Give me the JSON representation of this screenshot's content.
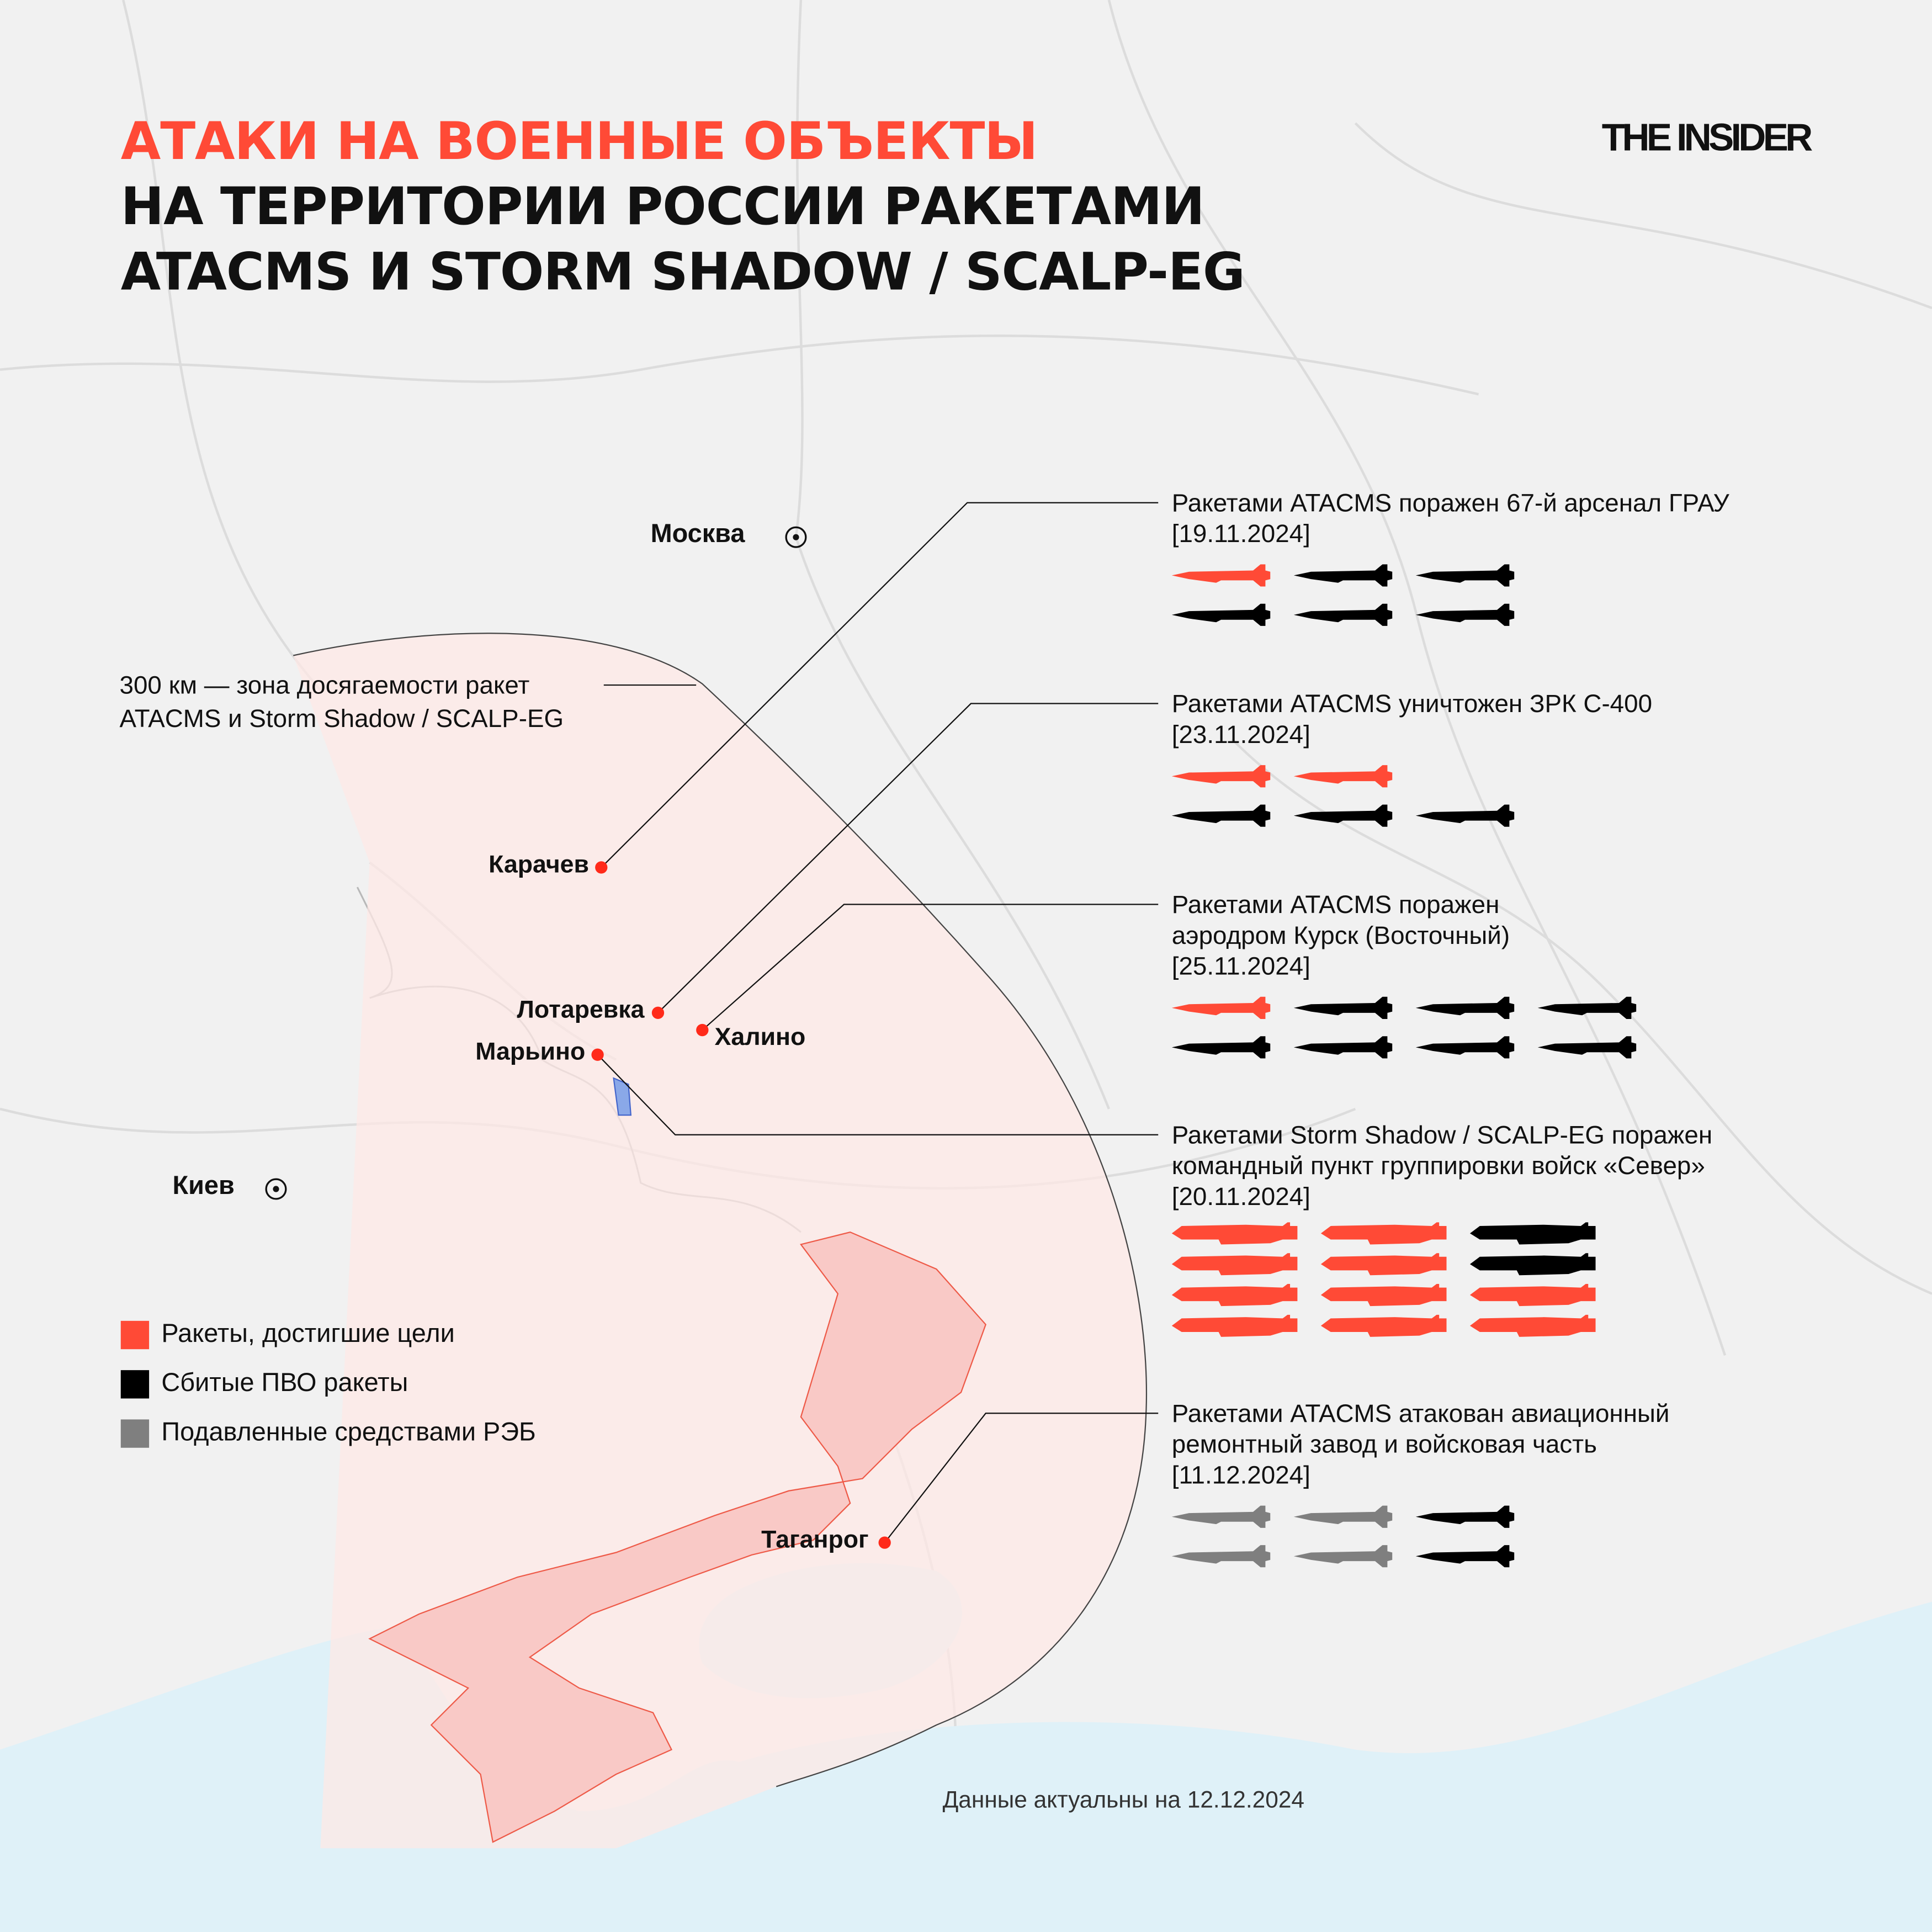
{
  "title": {
    "line1": "АТАКИ НА ВОЕННЫЕ ОБЪЕКТЫ",
    "line2": "НА ТЕРРИТОРИИ РОССИИ РАКЕТАМИ",
    "line3": "ATACMS И STORM SHADOW / SCALP-EG"
  },
  "logo": "THE INSIDER",
  "capitals": {
    "moscow": "Москва",
    "kyiv": "Киев"
  },
  "range_note": {
    "line1": "300 км — зона досягаемости ракет",
    "line2": "ATACMS и Storm Shadow / SCALP-EG"
  },
  "cities": {
    "karachev": "Карачев",
    "lotarevka": "Лотаревка",
    "khalino": "Халино",
    "maryino": "Марьино",
    "taganrog": "Таганрог"
  },
  "colors": {
    "hit": "#ff4a36",
    "downed": "#000000",
    "jammed": "#7f7f7f",
    "zone": "#fde8e6",
    "occupied": "#f9c9c6",
    "sea": "#dff1f8"
  },
  "attacks": [
    {
      "lines": [
        "Ракетами ATACMS поражен 67-й арсенал ГРАУ",
        "[19.11.2024]"
      ],
      "missile_type": "atacms",
      "missiles": [
        [
          "hit",
          "downed",
          "downed"
        ],
        [
          "downed",
          "downed",
          "downed"
        ]
      ]
    },
    {
      "lines": [
        "Ракетами ATACMS уничтожен ЗРК С-400",
        "[23.11.2024]"
      ],
      "missile_type": "atacms",
      "missiles": [
        [
          "hit",
          "hit"
        ],
        [
          "downed",
          "downed",
          "downed"
        ]
      ]
    },
    {
      "lines": [
        "Ракетами ATACMS поражен",
        "аэродром Курск (Восточный)",
        "[25.11.2024]"
      ],
      "missile_type": "atacms",
      "missiles": [
        [
          "hit",
          "downed",
          "downed",
          "downed"
        ],
        [
          "downed",
          "downed",
          "downed",
          "downed"
        ]
      ]
    },
    {
      "lines": [
        "Ракетами Storm Shadow / SCALP-EG поражен",
        "командный пункт группировки войск «Север»",
        "[20.11.2024]"
      ],
      "missile_type": "storm-shadow",
      "missiles": [
        [
          "hit",
          "hit",
          "downed"
        ],
        [
          "hit",
          "hit",
          "downed"
        ],
        [
          "hit",
          "hit",
          "hit"
        ],
        [
          "hit",
          "hit",
          "hit"
        ]
      ]
    },
    {
      "lines": [
        "Ракетами ATACMS атакован авиационный",
        "ремонтный завод и войсковая часть",
        "[11.12.2024]"
      ],
      "missile_type": "atacms",
      "missiles": [
        [
          "jammed",
          "jammed",
          "downed"
        ],
        [
          "jammed",
          "jammed",
          "downed"
        ]
      ]
    }
  ],
  "legend": [
    {
      "label": "Ракеты, достигшие цели",
      "status": "hit"
    },
    {
      "label": "Сбитые ПВО ракеты",
      "status": "downed"
    },
    {
      "label": "Подавленные средствами РЭБ",
      "status": "jammed"
    }
  ],
  "footer": "Данные актуальны на 12.12.2024"
}
